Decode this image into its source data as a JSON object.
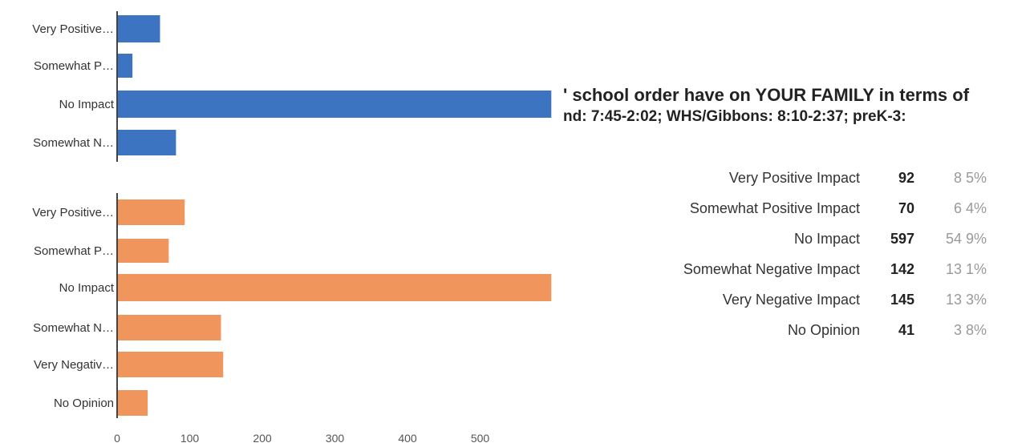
{
  "title": {
    "line1": "' school order have on YOUR FAMILY in terms of",
    "line2": "nd: 7:45-2:02; WHS/Gibbons: 8:10-2:37; preK-3:"
  },
  "summary": {
    "rows": [
      {
        "label": "Very Positive Impact",
        "count": "92",
        "percent": "8 5%"
      },
      {
        "label": "Somewhat Positive Impact",
        "count": "70",
        "percent": "6 4%"
      },
      {
        "label": "No Impact",
        "count": "597",
        "percent": "54 9%"
      },
      {
        "label": "Somewhat Negative Impact",
        "count": "142",
        "percent": "13 1%"
      },
      {
        "label": "Very Negative Impact",
        "count": "145",
        "percent": "13 3%"
      },
      {
        "label": "No Opinion",
        "count": "41",
        "percent": "3 8%"
      }
    ]
  },
  "chart_data": [
    {
      "type": "bar",
      "orientation": "horizontal",
      "color": "#3d74c1",
      "categories": [
        "Very Positive…",
        "Somewhat P…",
        "No Impact",
        "Somewhat N…"
      ],
      "values": [
        58,
        20,
        597,
        80
      ],
      "xlim": [
        0,
        600
      ]
    },
    {
      "type": "bar",
      "orientation": "horizontal",
      "color": "#f0955c",
      "categories": [
        "Very Positive…",
        "Somewhat P…",
        "No Impact",
        "Somewhat N…",
        "Very Negativ…",
        "No Opinion"
      ],
      "values": [
        92,
        70,
        597,
        142,
        145,
        41
      ],
      "xlim": [
        0,
        600
      ],
      "xticks": [
        "0",
        "100",
        "200",
        "300",
        "400",
        "500"
      ]
    }
  ]
}
